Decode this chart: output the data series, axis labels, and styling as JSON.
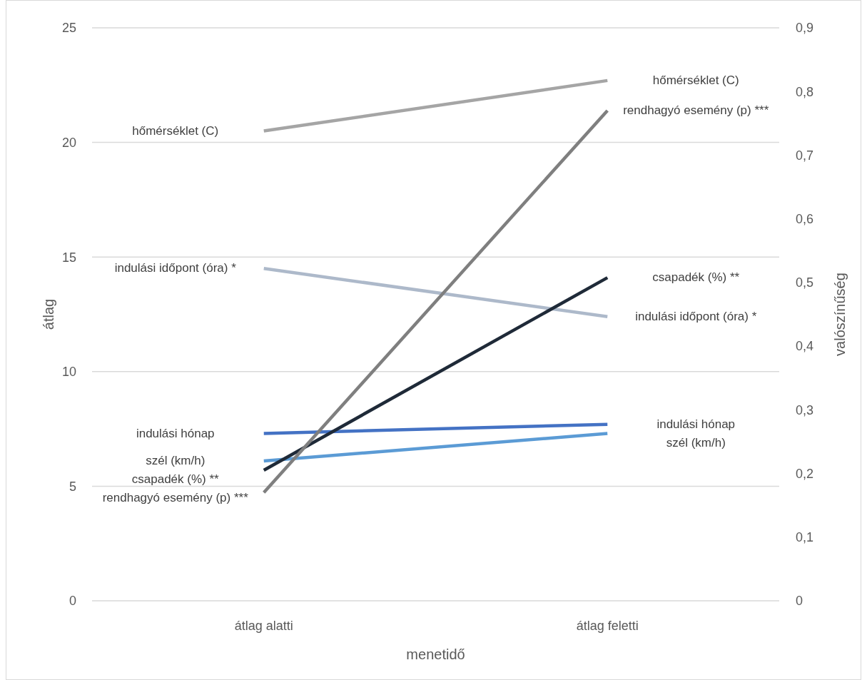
{
  "chart_data": {
    "type": "line",
    "xlabel": "menetidő",
    "ylabel": "átlag",
    "y2label": "valószínűség",
    "categories": [
      "átlag alatti",
      "átlag feletti"
    ],
    "ylim": [
      0,
      25
    ],
    "yticks": [
      0,
      5,
      10,
      15,
      20,
      25
    ],
    "y2lim": [
      0,
      0.9
    ],
    "y2ticks": [
      0,
      {
        "value": 0.1,
        "label": "0,1"
      },
      {
        "value": 0.2,
        "label": "0,2"
      },
      {
        "value": 0.3,
        "label": "0,3"
      },
      {
        "value": 0.4,
        "label": "0,4"
      },
      {
        "value": 0.5,
        "label": "0,5"
      },
      {
        "value": 0.6,
        "label": "0,6"
      },
      {
        "value": 0.7,
        "label": "0,7"
      },
      {
        "value": 0.8,
        "label": "0,8"
      },
      {
        "value": 0.9,
        "label": "0,9"
      }
    ],
    "grid": "y",
    "legend": false,
    "marker": "none",
    "line_style": "solid",
    "series": [
      {
        "name": "indulási hónap",
        "color": "#4472c4",
        "values": [
          7.3,
          7.7
        ]
      },
      {
        "name": "szél (km/h)",
        "color": "#5b9bd5",
        "values": [
          6.1,
          7.3
        ]
      },
      {
        "name": "hőmérséklet (C)",
        "color": "#a5a5a5",
        "values": [
          20.5,
          22.7
        ]
      },
      {
        "name": "indulási időpont (óra) *",
        "color": "#adb9ca",
        "values": [
          14.5,
          12.4
        ]
      },
      {
        "name": "csapadék (%) **",
        "color": "#1f2a38",
        "values": [
          5.7,
          14.1
        ]
      },
      {
        "name": "rendhagyó esemény (p) ***",
        "color": "#7f7f7f",
        "values": [
          0.17,
          0.77
        ],
        "axis": "y2"
      }
    ]
  }
}
